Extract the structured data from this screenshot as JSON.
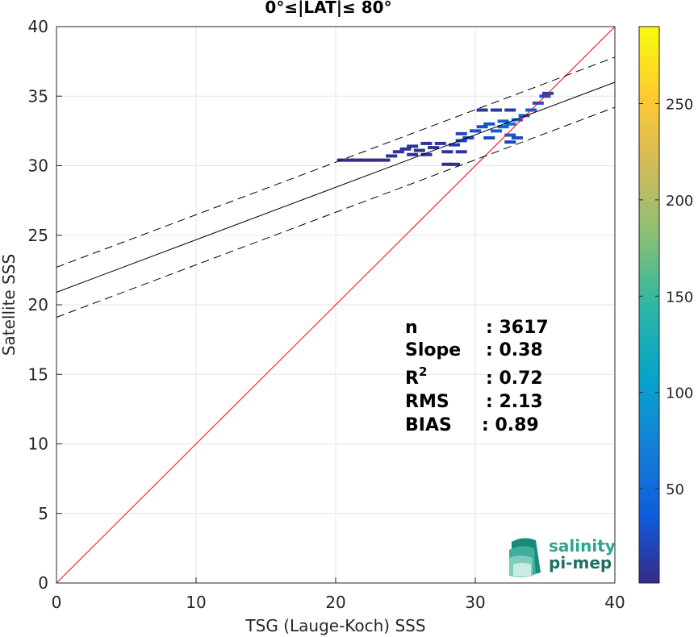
{
  "chart_data": {
    "type": "scatter",
    "title": "0°≤|LAT|≤ 80°",
    "xlabel": "TSG (Lauge-Koch) SSS",
    "ylabel": "Satellite SSS",
    "xlim": [
      0,
      40
    ],
    "ylim": [
      0,
      40
    ],
    "xticks": [
      0,
      10,
      20,
      30,
      40
    ],
    "yticks": [
      0,
      5,
      10,
      15,
      20,
      25,
      30,
      35,
      40
    ],
    "grid": true,
    "colorbar": {
      "range": [
        1,
        290
      ],
      "ticks": [
        50,
        100,
        150,
        200,
        250
      ],
      "colormap": "parula"
    },
    "lines": [
      {
        "kind": "one-to-one",
        "color": "#ff0000",
        "style": "solid",
        "points": [
          [
            0,
            0
          ],
          [
            40,
            40
          ]
        ]
      },
      {
        "kind": "regression",
        "color": "#000000",
        "style": "solid",
        "points": [
          [
            0,
            20.9
          ],
          [
            40,
            36.0
          ]
        ]
      },
      {
        "kind": "upper-bound",
        "color": "#000000",
        "style": "dashed",
        "points": [
          [
            0,
            22.7
          ],
          [
            40,
            37.8
          ]
        ]
      },
      {
        "kind": "lower-bound",
        "color": "#000000",
        "style": "dashed",
        "points": [
          [
            0,
            19.1
          ],
          [
            40,
            34.2
          ]
        ]
      }
    ],
    "density_points": [
      {
        "x": 20.5,
        "y": 30.4,
        "count": 4
      },
      {
        "x": 21.0,
        "y": 30.4,
        "count": 4
      },
      {
        "x": 21.5,
        "y": 30.4,
        "count": 4
      },
      {
        "x": 22.0,
        "y": 30.4,
        "count": 4
      },
      {
        "x": 22.5,
        "y": 30.4,
        "count": 4
      },
      {
        "x": 23.0,
        "y": 30.4,
        "count": 4
      },
      {
        "x": 23.5,
        "y": 30.4,
        "count": 4
      },
      {
        "x": 24.0,
        "y": 30.7,
        "count": 6
      },
      {
        "x": 24.5,
        "y": 31.0,
        "count": 6
      },
      {
        "x": 25.0,
        "y": 31.2,
        "count": 8
      },
      {
        "x": 25.5,
        "y": 31.4,
        "count": 8
      },
      {
        "x": 26.0,
        "y": 31.1,
        "count": 6
      },
      {
        "x": 26.5,
        "y": 31.6,
        "count": 10
      },
      {
        "x": 27.0,
        "y": 31.3,
        "count": 8
      },
      {
        "x": 27.5,
        "y": 31.6,
        "count": 12
      },
      {
        "x": 28.0,
        "y": 31.0,
        "count": 10
      },
      {
        "x": 28.0,
        "y": 30.1,
        "count": 6
      },
      {
        "x": 28.5,
        "y": 30.1,
        "count": 6
      },
      {
        "x": 28.5,
        "y": 31.5,
        "count": 15
      },
      {
        "x": 29.0,
        "y": 31.8,
        "count": 18
      },
      {
        "x": 29.0,
        "y": 32.3,
        "count": 20
      },
      {
        "x": 29.5,
        "y": 32.0,
        "count": 22
      },
      {
        "x": 30.0,
        "y": 32.5,
        "count": 25
      },
      {
        "x": 30.5,
        "y": 32.8,
        "count": 28
      },
      {
        "x": 31.0,
        "y": 33.0,
        "count": 30
      },
      {
        "x": 31.5,
        "y": 32.5,
        "count": 35
      },
      {
        "x": 32.0,
        "y": 33.2,
        "count": 40
      },
      {
        "x": 32.0,
        "y": 32.8,
        "count": 45
      },
      {
        "x": 32.5,
        "y": 33.0,
        "count": 50
      },
      {
        "x": 32.5,
        "y": 32.2,
        "count": 35
      },
      {
        "x": 33.0,
        "y": 33.3,
        "count": 45
      },
      {
        "x": 33.5,
        "y": 33.6,
        "count": 40
      },
      {
        "x": 34.0,
        "y": 34.0,
        "count": 38
      },
      {
        "x": 34.5,
        "y": 34.5,
        "count": 30
      },
      {
        "x": 35.0,
        "y": 35.0,
        "count": 25
      },
      {
        "x": 35.2,
        "y": 35.2,
        "count": 20
      },
      {
        "x": 30.5,
        "y": 34.0,
        "count": 10
      },
      {
        "x": 31.5,
        "y": 34.0,
        "count": 10
      },
      {
        "x": 32.5,
        "y": 34.0,
        "count": 12
      },
      {
        "x": 31.0,
        "y": 32.0,
        "count": 22
      },
      {
        "x": 33.0,
        "y": 32.0,
        "count": 25
      },
      {
        "x": 32.5,
        "y": 31.7,
        "count": 20
      },
      {
        "x": 29.0,
        "y": 31.0,
        "count": 12
      },
      {
        "x": 26.5,
        "y": 30.8,
        "count": 6
      },
      {
        "x": 25.5,
        "y": 30.8,
        "count": 6
      }
    ]
  },
  "stats": {
    "n_label": "n",
    "n_value": ": 3617",
    "slope_label": "Slope",
    "slope_value": ": 0.38",
    "r2_label": "R",
    "r2_sup": "2",
    "r2_value": ": 0.72",
    "rms_label": "RMS",
    "rms_value": ": 2.13",
    "bias_label": "BIAS",
    "bias_value": ": 0.89"
  },
  "logo": {
    "line1": "salinity",
    "line2": "pi-mep"
  }
}
